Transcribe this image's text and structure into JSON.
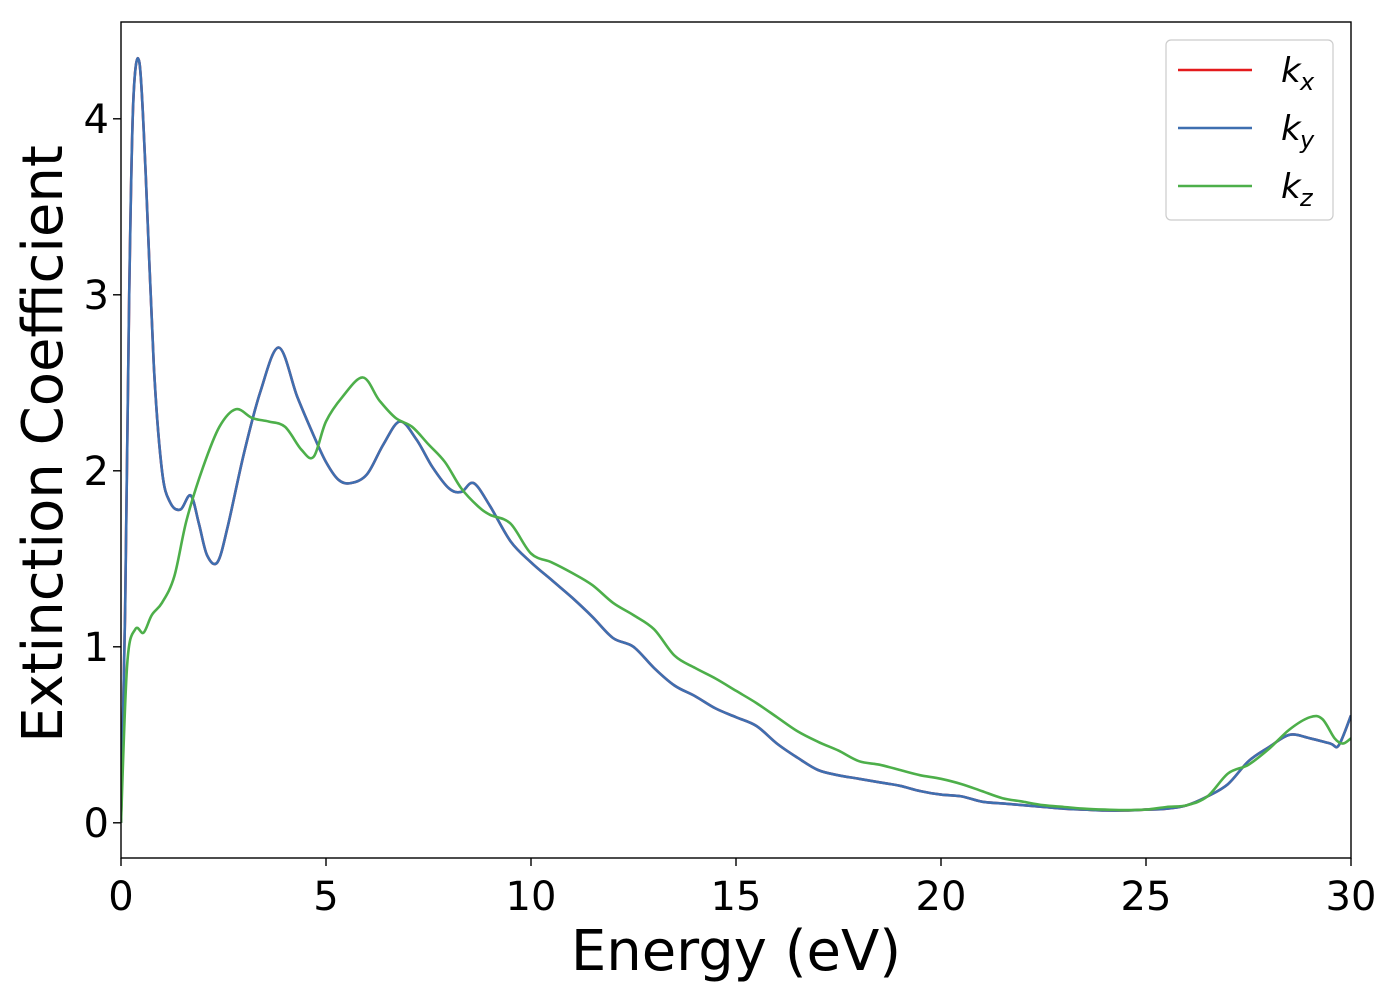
{
  "chart_data": {
    "type": "line",
    "xlabel": "Energy (eV)",
    "ylabel": "Extinction Coefficient",
    "xlim": [
      0,
      30
    ],
    "ylim": [
      -0.2,
      4.55
    ],
    "xticks": [
      0,
      5,
      10,
      15,
      20,
      25,
      30
    ],
    "xtick_labels": [
      "0",
      "5",
      "10",
      "15",
      "20",
      "25",
      "30"
    ],
    "yticks": [
      0,
      1,
      2,
      3,
      4
    ],
    "ytick_labels": [
      "0",
      "1",
      "2",
      "3",
      "4"
    ],
    "grid": false,
    "legend_position": "top-right",
    "series": [
      {
        "name": "kx",
        "label_base": "k",
        "label_sub": "x",
        "color": "#e41a1c",
        "x": [
          0,
          0.1,
          0.2,
          0.3,
          0.45,
          0.6,
          0.8,
          1.0,
          1.2,
          1.45,
          1.7,
          1.9,
          2.1,
          2.35,
          2.6,
          3.0,
          3.4,
          3.85,
          4.3,
          4.7,
          5.0,
          5.3,
          5.6,
          6.0,
          6.4,
          6.8,
          7.2,
          7.6,
          8.0,
          8.3,
          8.6,
          9.0,
          9.5,
          10.0,
          10.5,
          11.0,
          11.5,
          12.0,
          12.5,
          13.0,
          13.5,
          14.0,
          14.5,
          15.0,
          15.5,
          16.0,
          16.5,
          17.0,
          17.5,
          18.0,
          18.5,
          19.0,
          19.5,
          20.0,
          20.5,
          21.0,
          21.5,
          22.0,
          22.5,
          23.0,
          23.5,
          24.0,
          24.5,
          25.0,
          25.5,
          26.0,
          26.5,
          27.0,
          27.5,
          28.0,
          28.5,
          29.0,
          29.5,
          29.7,
          30.0
        ],
        "y": [
          0.0,
          1.2,
          3.0,
          4.1,
          4.32,
          3.7,
          2.6,
          2.0,
          1.82,
          1.78,
          1.86,
          1.7,
          1.52,
          1.48,
          1.68,
          2.1,
          2.45,
          2.7,
          2.42,
          2.2,
          2.05,
          1.95,
          1.93,
          1.98,
          2.15,
          2.28,
          2.18,
          2.02,
          1.9,
          1.88,
          1.93,
          1.8,
          1.6,
          1.48,
          1.38,
          1.28,
          1.17,
          1.05,
          1.0,
          0.88,
          0.78,
          0.72,
          0.65,
          0.6,
          0.55,
          0.45,
          0.37,
          0.3,
          0.27,
          0.25,
          0.23,
          0.21,
          0.18,
          0.16,
          0.15,
          0.12,
          0.11,
          0.1,
          0.09,
          0.08,
          0.075,
          0.07,
          0.07,
          0.075,
          0.08,
          0.1,
          0.15,
          0.22,
          0.35,
          0.43,
          0.5,
          0.48,
          0.45,
          0.44,
          0.61
        ]
      },
      {
        "name": "ky",
        "label_base": "k",
        "label_sub": "y",
        "color": "#3e6fb0",
        "x": [
          0,
          0.1,
          0.2,
          0.3,
          0.45,
          0.6,
          0.8,
          1.0,
          1.2,
          1.45,
          1.7,
          1.9,
          2.1,
          2.35,
          2.6,
          3.0,
          3.4,
          3.85,
          4.3,
          4.7,
          5.0,
          5.3,
          5.6,
          6.0,
          6.4,
          6.8,
          7.2,
          7.6,
          8.0,
          8.3,
          8.6,
          9.0,
          9.5,
          10.0,
          10.5,
          11.0,
          11.5,
          12.0,
          12.5,
          13.0,
          13.5,
          14.0,
          14.5,
          15.0,
          15.5,
          16.0,
          16.5,
          17.0,
          17.5,
          18.0,
          18.5,
          19.0,
          19.5,
          20.0,
          20.5,
          21.0,
          21.5,
          22.0,
          22.5,
          23.0,
          23.5,
          24.0,
          24.5,
          25.0,
          25.5,
          26.0,
          26.5,
          27.0,
          27.5,
          28.0,
          28.5,
          29.0,
          29.5,
          29.7,
          30.0
        ],
        "y": [
          0.0,
          1.2,
          3.0,
          4.1,
          4.32,
          3.7,
          2.6,
          2.0,
          1.82,
          1.78,
          1.86,
          1.7,
          1.52,
          1.48,
          1.68,
          2.1,
          2.45,
          2.7,
          2.42,
          2.2,
          2.05,
          1.95,
          1.93,
          1.98,
          2.15,
          2.28,
          2.18,
          2.02,
          1.9,
          1.88,
          1.93,
          1.8,
          1.6,
          1.48,
          1.38,
          1.28,
          1.17,
          1.05,
          1.0,
          0.88,
          0.78,
          0.72,
          0.65,
          0.6,
          0.55,
          0.45,
          0.37,
          0.3,
          0.27,
          0.25,
          0.23,
          0.21,
          0.18,
          0.16,
          0.15,
          0.12,
          0.11,
          0.1,
          0.09,
          0.08,
          0.075,
          0.07,
          0.07,
          0.075,
          0.08,
          0.1,
          0.15,
          0.22,
          0.35,
          0.43,
          0.5,
          0.48,
          0.45,
          0.44,
          0.61
        ]
      },
      {
        "name": "kz",
        "label_base": "k",
        "label_sub": "z",
        "color": "#4daf4a",
        "x": [
          0,
          0.15,
          0.35,
          0.55,
          0.75,
          1.0,
          1.3,
          1.6,
          2.0,
          2.4,
          2.8,
          3.2,
          3.6,
          4.0,
          4.4,
          4.7,
          5.0,
          5.4,
          5.9,
          6.3,
          6.7,
          7.1,
          7.5,
          7.9,
          8.3,
          8.7,
          9.0,
          9.5,
          10.0,
          10.5,
          11.0,
          11.5,
          12.0,
          12.5,
          13.0,
          13.5,
          14.0,
          14.5,
          15.0,
          15.5,
          16.0,
          16.5,
          17.0,
          17.5,
          18.0,
          18.5,
          19.0,
          19.5,
          20.0,
          20.5,
          21.0,
          21.5,
          22.0,
          22.5,
          23.0,
          23.5,
          24.0,
          24.5,
          25.0,
          25.5,
          26.0,
          26.5,
          27.0,
          27.5,
          28.0,
          28.5,
          29.0,
          29.3,
          29.6,
          29.8,
          30.0
        ],
        "y": [
          0.0,
          0.9,
          1.1,
          1.08,
          1.18,
          1.25,
          1.4,
          1.72,
          2.02,
          2.25,
          2.35,
          2.3,
          2.28,
          2.25,
          2.12,
          2.08,
          2.28,
          2.42,
          2.53,
          2.4,
          2.3,
          2.25,
          2.15,
          2.05,
          1.9,
          1.8,
          1.75,
          1.7,
          1.53,
          1.48,
          1.42,
          1.35,
          1.25,
          1.18,
          1.1,
          0.95,
          0.88,
          0.82,
          0.75,
          0.68,
          0.6,
          0.52,
          0.46,
          0.41,
          0.35,
          0.33,
          0.3,
          0.27,
          0.25,
          0.22,
          0.18,
          0.14,
          0.12,
          0.1,
          0.09,
          0.08,
          0.075,
          0.072,
          0.075,
          0.09,
          0.1,
          0.15,
          0.28,
          0.33,
          0.42,
          0.53,
          0.6,
          0.59,
          0.48,
          0.45,
          0.48
        ]
      }
    ]
  }
}
